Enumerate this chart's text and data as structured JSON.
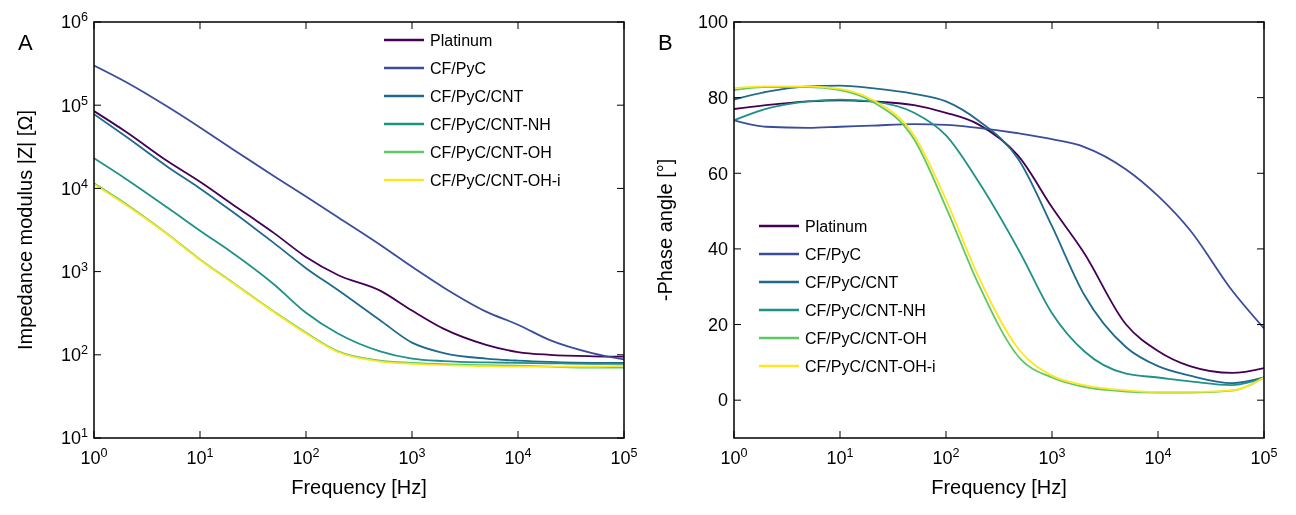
{
  "chart_data": [
    {
      "type": "line",
      "title": "A",
      "xlabel": "Frequency [Hz]",
      "ylabel": "Impedance modulus |Z| [Ω]",
      "log": "xy",
      "grid": false,
      "legend": "top right",
      "line_style": "solid",
      "x": [
        1,
        2,
        5,
        10,
        20,
        50,
        100,
        200,
        500,
        1000,
        2000,
        5000,
        10000,
        20000,
        50000,
        100000
      ],
      "xlim": [
        1,
        100000
      ],
      "ylim": [
        10,
        1000000
      ],
      "xticks": [
        {
          "value": 1,
          "label": "10$^{0}$"
        },
        {
          "value": 10,
          "label": "10$^{1}$"
        },
        {
          "value": 100,
          "label": "10$^{2}$"
        },
        {
          "value": 1000,
          "label": "10$^{3}$"
        },
        {
          "value": 10000,
          "label": "10$^{4}$"
        },
        {
          "value": 100000,
          "label": "10$^{5}$"
        }
      ],
      "yticks": [
        {
          "value": 10,
          "label": "10$^{1}$"
        },
        {
          "value": 100,
          "label": "10$^{2}$"
        },
        {
          "value": 1000,
          "label": "10$^{3}$"
        },
        {
          "value": 10000,
          "label": "10$^{4}$"
        },
        {
          "value": 100000,
          "label": "10$^{5}$"
        },
        {
          "value": 1000000,
          "label": "10$^{6}$"
        }
      ],
      "series": [
        {
          "name": "Platinum",
          "color": "#440154",
          "values": [
            85000,
            48000,
            21000,
            12000,
            6500,
            2900,
            1500,
            910,
            590,
            340,
            205,
            132,
            108,
            100,
            96,
            95
          ]
        },
        {
          "name": "CF/PyC",
          "color": "#3b4d9a",
          "values": [
            300000,
            190000,
            95000,
            54000,
            30000,
            14000,
            8000,
            4500,
            2100,
            1140,
            640,
            330,
            230,
            150,
            105,
            88
          ]
        },
        {
          "name": "CF/PyC/CNT",
          "color": "#1f6a8c",
          "values": [
            78000,
            42000,
            18000,
            10000,
            5300,
            2200,
            1100,
            600,
            260,
            140,
            105,
            90,
            85,
            82,
            80,
            80
          ]
        },
        {
          "name": "CF/PyC/CNT-NH",
          "color": "#1f9188",
          "values": [
            23000,
            13000,
            5800,
            3100,
            1700,
            700,
            320,
            180,
            110,
            90,
            84,
            81,
            80,
            79,
            78,
            78
          ]
        },
        {
          "name": "CF/PyC/CNT-OH",
          "color": "#5ec962",
          "values": [
            11500,
            6500,
            2800,
            1400,
            750,
            330,
            184,
            110,
            85,
            80,
            77,
            75,
            74,
            72,
            70,
            70
          ]
        },
        {
          "name": "CF/PyC/CNT-OH-i",
          "color": "#fde725",
          "values": [
            11200,
            6300,
            2750,
            1380,
            740,
            325,
            180,
            108,
            83,
            78,
            75,
            73,
            72,
            72,
            72,
            74
          ]
        }
      ]
    },
    {
      "type": "line",
      "title": "B",
      "xlabel": "Frequency [Hz]",
      "ylabel": "-Phase angle [°]",
      "log": "x",
      "grid": false,
      "legend": "bottom left",
      "line_style": "solid",
      "x": [
        1,
        2,
        5,
        10,
        20,
        50,
        100,
        200,
        500,
        1000,
        2000,
        5000,
        10000,
        20000,
        50000,
        100000
      ],
      "xlim": [
        1,
        100000
      ],
      "ylim": [
        -10,
        100
      ],
      "xticks": [
        {
          "value": 1,
          "label": "10$^{0}$"
        },
        {
          "value": 10,
          "label": "10$^{1}$"
        },
        {
          "value": 100,
          "label": "10$^{2}$"
        },
        {
          "value": 1000,
          "label": "10$^{3}$"
        },
        {
          "value": 10000,
          "label": "10$^{4}$"
        },
        {
          "value": 100000,
          "label": "10$^{5}$"
        }
      ],
      "yticks": [
        0,
        20,
        40,
        60,
        80,
        100
      ],
      "series": [
        {
          "name": "Platinum",
          "color": "#440154",
          "values": [
            77,
            78,
            79,
            79.3,
            79,
            78,
            76,
            73,
            64,
            51,
            39,
            20,
            13,
            9,
            7.2,
            8.5
          ]
        },
        {
          "name": "CF/PyC",
          "color": "#3b4d9a",
          "values": [
            74,
            72.3,
            72,
            72.3,
            72.6,
            73,
            72.8,
            72,
            70.5,
            69,
            67,
            61,
            54,
            45,
            29,
            19
          ]
        },
        {
          "name": "CF/PyC/CNT",
          "color": "#1f6a8c",
          "values": [
            79.5,
            81.5,
            83,
            83.2,
            82.5,
            81,
            79,
            74,
            63,
            46,
            28,
            14,
            9,
            6.5,
            4.5,
            6
          ]
        },
        {
          "name": "CF/PyC/CNT-NH",
          "color": "#1f9188",
          "values": [
            74,
            77,
            79,
            79.5,
            79,
            76,
            70,
            58,
            39,
            23,
            13,
            7,
            6,
            5,
            4,
            6
          ]
        },
        {
          "name": "CF/PyC/CNT-OH",
          "color": "#5ec962",
          "values": [
            82,
            82.8,
            82.8,
            82,
            79,
            69,
            51,
            31,
            11,
            6,
            3.5,
            2.3,
            2,
            2,
            2.5,
            6
          ]
        },
        {
          "name": "CF/PyC/CNT-OH-i",
          "color": "#fde725",
          "values": [
            82.5,
            83,
            83,
            82.3,
            79.5,
            70,
            53,
            33,
            13,
            6.5,
            4,
            2.6,
            2.2,
            2.2,
            2.6,
            6
          ]
        }
      ]
    }
  ]
}
